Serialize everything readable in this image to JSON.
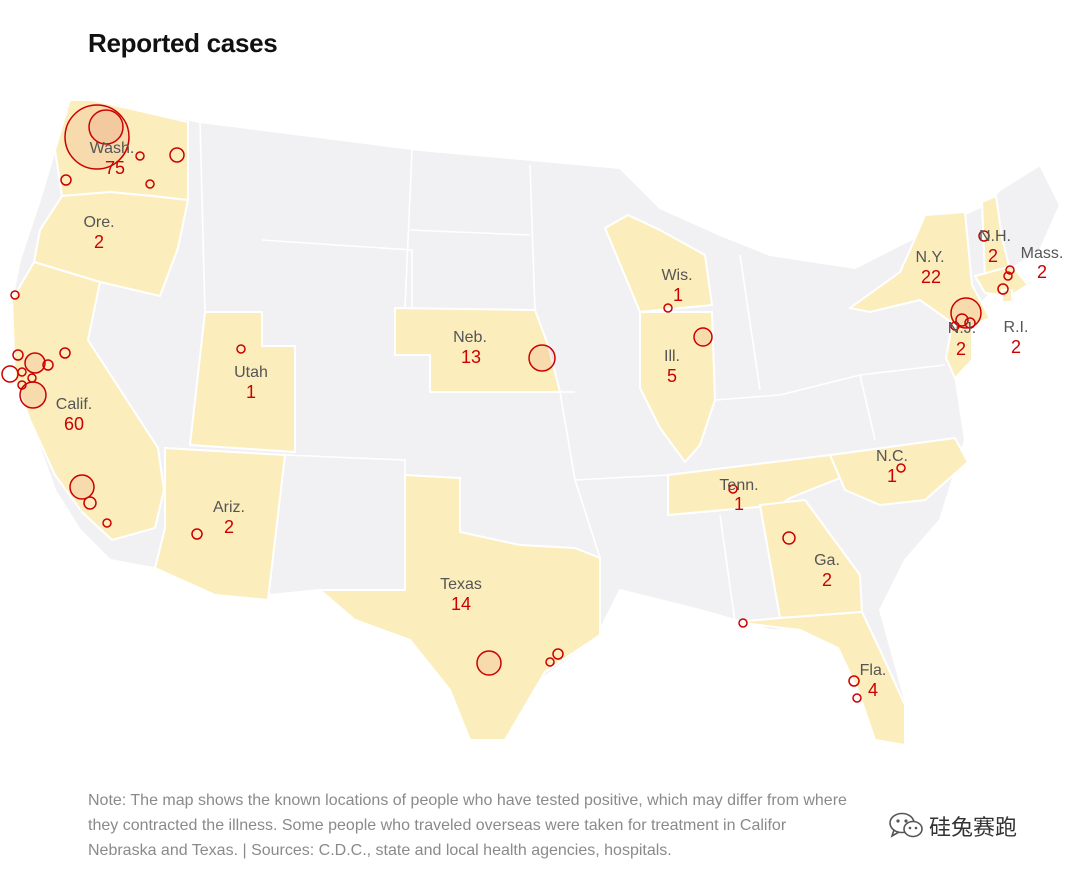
{
  "title": "Reported cases",
  "colors": {
    "affected_fill": "#fbeebc",
    "unaffected_fill": "#f1f1f4",
    "border": "#ffffff",
    "case_circle": "#cc0000",
    "label": "#555555"
  },
  "states": [
    {
      "id": "washington",
      "label": "Wash.",
      "count": "75"
    },
    {
      "id": "oregon",
      "label": "Ore.",
      "count": "2"
    },
    {
      "id": "california",
      "label": "Calif.",
      "count": "60"
    },
    {
      "id": "utah",
      "label": "Utah",
      "count": "1"
    },
    {
      "id": "arizona",
      "label": "Ariz.",
      "count": "2"
    },
    {
      "id": "nebraska",
      "label": "Neb.",
      "count": "13"
    },
    {
      "id": "texas",
      "label": "Texas",
      "count": "14"
    },
    {
      "id": "wisconsin",
      "label": "Wis.",
      "count": "1"
    },
    {
      "id": "illinois",
      "label": "Ill.",
      "count": "5"
    },
    {
      "id": "tennessee",
      "label": "Tenn.",
      "count": "1"
    },
    {
      "id": "north-carolina",
      "label": "N.C.",
      "count": "1"
    },
    {
      "id": "georgia",
      "label": "Ga.",
      "count": "2"
    },
    {
      "id": "florida",
      "label": "Fla.",
      "count": "4"
    },
    {
      "id": "new-york",
      "label": "N.Y.",
      "count": "22"
    },
    {
      "id": "new-hampshire",
      "label": "N.H.",
      "count": "2"
    },
    {
      "id": "massachusetts",
      "label": "Mass.",
      "count": "2"
    },
    {
      "id": "new-jersey",
      "label": "N.J.",
      "count": "2"
    },
    {
      "id": "rhode-island",
      "label": "R.I.",
      "count": "2"
    }
  ],
  "note": {
    "line1": "Note: The map shows the known locations of people who have tested positive, which may differ from where",
    "line2": "they contracted the illness. Some people who traveled overseas were taken for treatment in Califor",
    "line3": "Nebraska and Texas. | Sources: C.D.C., state and local health agencies, hospitals."
  },
  "watermark": {
    "icon": "wechat-icon",
    "text": "硅兔赛跑"
  }
}
